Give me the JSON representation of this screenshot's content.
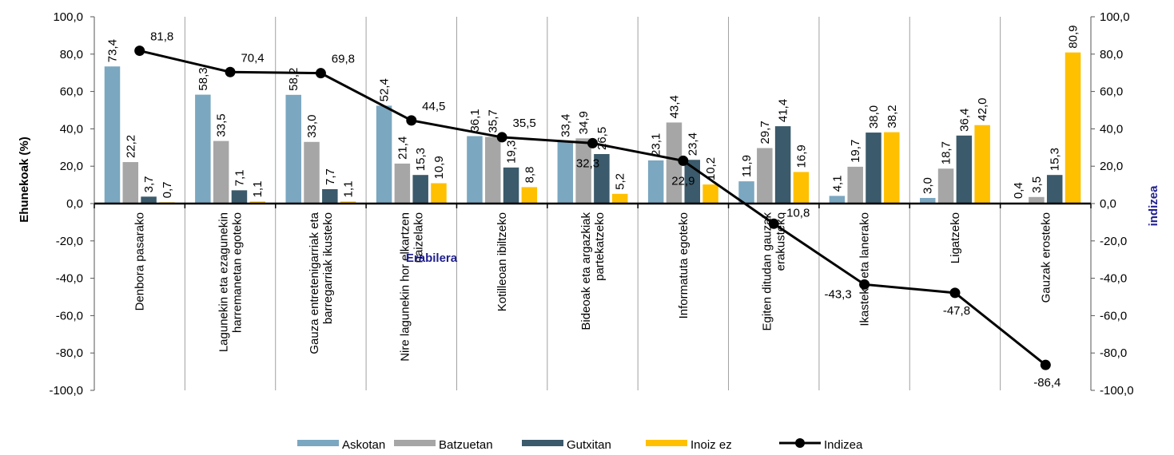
{
  "chart_data": {
    "type": "bar",
    "categories": [
      "Denbora pasarako",
      "Lagunekin eta ezagunekin harremanetan egoteko",
      "Gauza entretenigarriak eta barregarriak ikusteko",
      "Nire lagunekin hor elkartzen naizelako",
      "Kotilleoan ibiltzeko",
      "Bideoak eta argazkiak partekatzeko",
      "Informatuta egoteko",
      "Egiten ditudan gauzak erakusteko",
      "Ikasteko eta lanerako",
      "Ligatzeko",
      "Gauzak erosteko"
    ],
    "category_lines": [
      [
        "Denbora pasarako"
      ],
      [
        "Lagunekin eta ezagunekin",
        "harremanetan egoteko"
      ],
      [
        "Gauza entretenigarriak eta",
        "barregarriak ikusteko"
      ],
      [
        "Nire lagunekin hor elkartzen",
        "naizelako"
      ],
      [
        "Kotilleoan ibiltzeko"
      ],
      [
        "Bideoak eta argazkiak",
        "partekatzeko"
      ],
      [
        "Informatuta egoteko"
      ],
      [
        "Egiten ditudan gauzak",
        "erakusteko"
      ],
      [
        "Ikasteko eta lanerako"
      ],
      [
        "Ligatzeko"
      ],
      [
        "Gauzak erosteko"
      ]
    ],
    "series": [
      {
        "name": "Askotan",
        "color": "#7ba7c0",
        "values": [
          73.4,
          58.3,
          58.2,
          52.4,
          36.1,
          33.4,
          23.1,
          11.9,
          4.1,
          3.0,
          0.4
        ]
      },
      {
        "name": "Batzuetan",
        "color": "#a6a6a6",
        "values": [
          22.2,
          33.5,
          33.0,
          21.4,
          35.7,
          34.9,
          43.4,
          29.7,
          19.7,
          18.7,
          3.5
        ]
      },
      {
        "name": "Gutxitan",
        "color": "#3b5a6b",
        "values": [
          3.7,
          7.1,
          7.7,
          15.3,
          19.3,
          26.5,
          23.4,
          41.4,
          38.0,
          36.4,
          15.3
        ]
      },
      {
        "name": "Inoiz ez",
        "color": "#ffc000",
        "values": [
          0.7,
          1.1,
          1.1,
          10.9,
          8.8,
          5.2,
          10.2,
          16.9,
          38.2,
          42.0,
          80.9
        ]
      }
    ],
    "line_series": {
      "name": "Indizea",
      "color": "#000000",
      "axis": "right",
      "values": [
        81.8,
        70.4,
        69.8,
        44.5,
        35.5,
        32.3,
        22.9,
        -10.8,
        -43.3,
        -47.8,
        -86.4
      ]
    },
    "ylabel": "Ehunekoak (%)",
    "y2label": "indizea",
    "xlabel": "Erabilera",
    "ylim": [
      -100,
      100
    ],
    "y2lim": [
      -100,
      100
    ],
    "yticks": [
      "100,0",
      "80,0",
      "60,0",
      "40,0",
      "20,0",
      "0,0",
      "-20,0",
      "-40,0",
      "-60,0",
      "-80,0",
      "-100,0"
    ],
    "grid": "vertical category separators",
    "legend_position": "bottom"
  }
}
